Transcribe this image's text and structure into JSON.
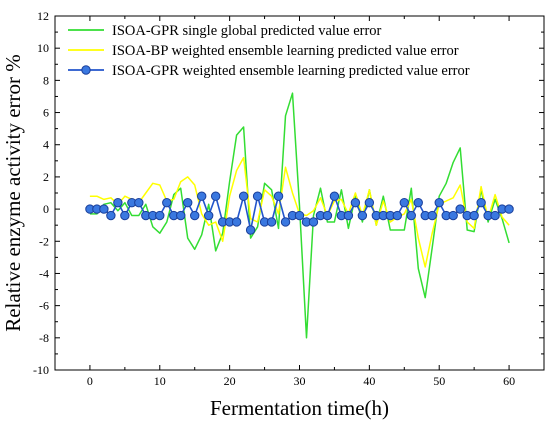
{
  "chart_data": {
    "type": "line",
    "xlabel": "Fermentation time(h)",
    "ylabel": "Relative enzyme activity error %",
    "xlim": [
      -5,
      65
    ],
    "ylim": [
      -10,
      12
    ],
    "xticks": [
      0,
      10,
      20,
      30,
      40,
      50,
      60
    ],
    "yticks": [
      -10,
      -8,
      -6,
      -4,
      -2,
      0,
      2,
      4,
      6,
      8,
      10,
      12
    ],
    "grid": false,
    "legend_position": "top-left",
    "series": [
      {
        "name": "ISOA-GPR single global predicted value error",
        "color": "#33dd33",
        "marker": "none",
        "x": [
          0,
          1,
          2,
          3,
          4,
          5,
          6,
          7,
          8,
          9,
          10,
          11,
          12,
          13,
          14,
          15,
          16,
          17,
          18,
          19,
          20,
          21,
          22,
          23,
          24,
          25,
          26,
          27,
          28,
          29,
          30,
          31,
          32,
          33,
          34,
          35,
          36,
          37,
          38,
          39,
          40,
          41,
          42,
          43,
          44,
          45,
          46,
          47,
          48,
          49,
          50,
          51,
          52,
          53,
          54,
          55,
          56,
          57,
          58,
          59,
          60
        ],
        "values": [
          -0.3,
          -0.3,
          0.3,
          0.4,
          -0.1,
          0.4,
          -0.4,
          -0.4,
          0.3,
          -1.1,
          -1.5,
          -0.8,
          0.9,
          1.3,
          -1.8,
          -2.5,
          -1.6,
          0.3,
          -2.6,
          -1.5,
          1.7,
          4.6,
          5.1,
          -1.8,
          -1.1,
          1.6,
          1.2,
          -1.2,
          5.8,
          7.2,
          0.2,
          -8.0,
          -0.4,
          1.3,
          -0.8,
          -0.8,
          1.2,
          -1.2,
          0.8,
          -0.8,
          1.2,
          -1.0,
          0.8,
          -1.3,
          -1.3,
          -1.3,
          1.3,
          -3.7,
          -5.5,
          -2.4,
          0.8,
          1.6,
          2.9,
          3.8,
          -1.3,
          -1.4,
          1.2,
          -0.8,
          0.6,
          -0.6,
          -2.1
        ]
      },
      {
        "name": "ISOA-BP weighted ensemble learning predicted value error",
        "color": "#ffff00",
        "marker": "none",
        "x": [
          0,
          1,
          2,
          3,
          4,
          5,
          6,
          7,
          8,
          9,
          10,
          11,
          12,
          13,
          14,
          15,
          16,
          17,
          18,
          19,
          20,
          21,
          22,
          23,
          24,
          25,
          26,
          27,
          28,
          29,
          30,
          31,
          32,
          33,
          34,
          35,
          36,
          37,
          38,
          39,
          40,
          41,
          42,
          43,
          44,
          45,
          46,
          47,
          48,
          49,
          50,
          51,
          52,
          53,
          54,
          55,
          56,
          57,
          58,
          59,
          60
        ],
        "values": [
          0.8,
          0.8,
          0.6,
          0.7,
          0.3,
          0.8,
          0.6,
          0.4,
          1.0,
          1.6,
          1.5,
          0.5,
          0.6,
          1.7,
          2.0,
          1.5,
          -0.3,
          -1.0,
          -0.8,
          -2.0,
          0.8,
          2.4,
          3.2,
          -0.6,
          -0.8,
          1.2,
          0.8,
          -0.3,
          2.6,
          1.0,
          -0.3,
          -0.4,
          -0.1,
          0.7,
          -0.4,
          0.5,
          0.6,
          -0.3,
          1.0,
          -0.4,
          1.2,
          -1.0,
          0.5,
          -0.8,
          -0.5,
          -0.3,
          0.6,
          -1.8,
          -3.6,
          -1.5,
          0.3,
          0.5,
          0.7,
          1.5,
          -0.8,
          -1.2,
          1.4,
          -0.6,
          0.9,
          -0.5,
          -1.0
        ]
      },
      {
        "name": "ISOA-GPR weighted ensemble learning predicted value error",
        "color": "#2255cc",
        "marker": "circle",
        "x": [
          0,
          1,
          2,
          3,
          4,
          5,
          6,
          7,
          8,
          9,
          10,
          11,
          12,
          13,
          14,
          15,
          16,
          17,
          18,
          19,
          20,
          21,
          22,
          23,
          24,
          25,
          26,
          27,
          28,
          29,
          30,
          31,
          32,
          33,
          34,
          35,
          36,
          37,
          38,
          39,
          40,
          41,
          42,
          43,
          44,
          45,
          46,
          47,
          48,
          49,
          50,
          51,
          52,
          53,
          54,
          55,
          56,
          57,
          58,
          59,
          60
        ],
        "values": [
          0.0,
          0.0,
          0.0,
          -0.4,
          0.4,
          -0.4,
          0.4,
          0.4,
          -0.4,
          -0.4,
          -0.4,
          0.4,
          -0.4,
          -0.4,
          0.4,
          -0.4,
          0.8,
          -0.4,
          0.8,
          -0.8,
          -0.8,
          -0.8,
          0.8,
          -1.3,
          0.8,
          -0.8,
          -0.8,
          0.8,
          -0.8,
          -0.4,
          -0.4,
          -0.8,
          -0.8,
          -0.4,
          -0.4,
          0.8,
          -0.4,
          -0.4,
          0.4,
          -0.4,
          0.4,
          -0.4,
          -0.4,
          -0.4,
          -0.4,
          0.4,
          -0.4,
          0.4,
          -0.4,
          -0.4,
          0.4,
          -0.4,
          -0.4,
          0.0,
          -0.4,
          -0.4,
          0.4,
          -0.4,
          -0.4,
          0.0,
          0.0
        ]
      }
    ]
  }
}
